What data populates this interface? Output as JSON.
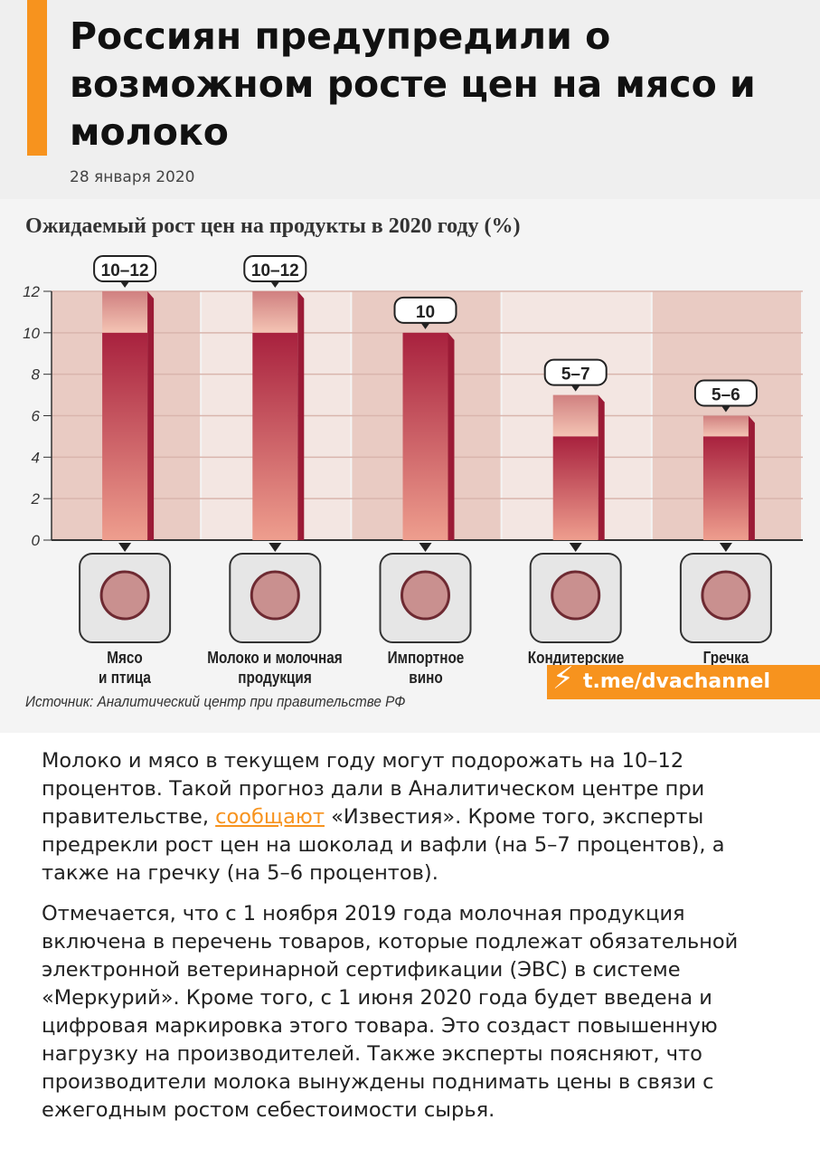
{
  "header": {
    "title": "Россиян предупредили о возможном росте цен на мясо и молоко",
    "date": "28 января 2020",
    "accent_color": "#f7931e"
  },
  "chart_data": {
    "type": "bar",
    "title": "Ожидаемый рост цен на продукты в 2020 году (%)",
    "categories": [
      "Мясо и птица",
      "Молоко и молочная продукция",
      "Импортное вино",
      "Кондитерские изделия",
      "Гречка"
    ],
    "category_lines": [
      [
        "Мясо",
        "и птица"
      ],
      [
        "Молоко и молочная",
        "продукция"
      ],
      [
        "Импортное",
        "вино"
      ],
      [
        "Кондитерские",
        ""
      ],
      [
        "Гречка",
        ""
      ]
    ],
    "series": [
      {
        "values_low": [
          10,
          10,
          10,
          5,
          5
        ],
        "values_high": [
          12,
          12,
          10,
          7,
          6
        ]
      }
    ],
    "data_labels": [
      "10–12",
      "10–12",
      "10",
      "5–7",
      "5–6"
    ],
    "icons": [
      "meat-icon",
      "dairy-icon",
      "wine-icon",
      "cake-icon",
      "buckwheat-icon"
    ],
    "yticks": [
      "0",
      "2",
      "4",
      "6",
      "8",
      "10",
      "12"
    ],
    "ylim": [
      0,
      12
    ],
    "grid": true,
    "colors": {
      "bar_low": "#a8213e",
      "bar_high": "#e8a89c"
    },
    "source": "Источник: Аналитический центр при правительстве РФ"
  },
  "watermark": {
    "text": "t.me/dvachannel",
    "icon": "lightning-icon"
  },
  "article": {
    "p1_before": "Молоко и мясо в текущем году могут подорожать на 10–12 процентов. Такой прогноз дали в Аналитическом центре при правительстве, ",
    "p1_link": "сообщают",
    "p1_after": " «Известия». Кроме того, эксперты предрекли рост цен на шоколад и вафли (на 5–7 процентов), а также на гречку (на 5–6 процентов).",
    "p2": "Отмечается, что с 1 ноября 2019 года молочная продукция включена в перечень товаров, которые подлежат обязательной электронной ветеринарной сертификации (ЭВС) в системе «Меркурий». Кроме того, с 1 июня 2020 года будет введена и цифровая маркировка этого товара. Это создаст повышенную нагрузку на производителей. Также эксперты поясняют, что производители молока вынуждены поднимать цены в связи с ежегодным ростом себестоимости сырья."
  }
}
